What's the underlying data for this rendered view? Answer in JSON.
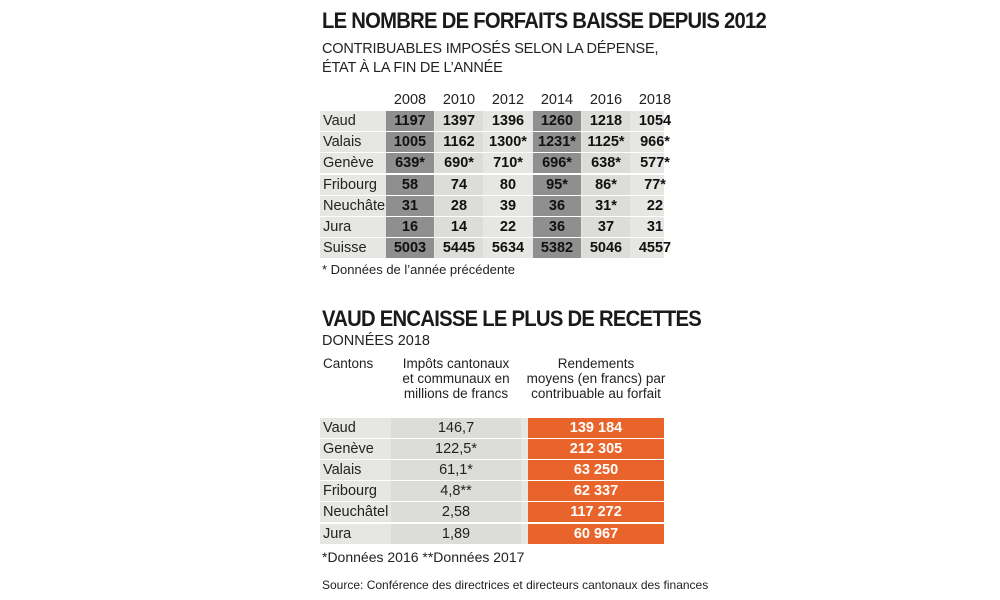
{
  "chart_data": [
    {
      "type": "table",
      "title": "LE NOMBRE DE FORFAITS BAISSE DEPUIS 2012",
      "subtitle_lines": [
        "CONTRIBUABLES IMPOSÉS SELON LA DÉPENSE,",
        "ÉTAT À LA FIN DE L’ANNÉE"
      ],
      "columns": [
        "2008",
        "2010",
        "2012",
        "2014",
        "2016",
        "2018"
      ],
      "rows": [
        {
          "name": "Vaud",
          "values": [
            "1197",
            "1397",
            "1396",
            "1260",
            "1218",
            "1054"
          ]
        },
        {
          "name": "Valais",
          "values": [
            "1005",
            "1162",
            "1300*",
            "1231*",
            "1125*",
            "966*"
          ]
        },
        {
          "name": "Genève",
          "values": [
            "639*",
            "690*",
            "710*",
            "696*",
            "638*",
            "577*"
          ]
        },
        {
          "name": "Fribourg",
          "values": [
            "58",
            "74",
            "80",
            "95*",
            "86*",
            "77*"
          ]
        },
        {
          "name": "Neuchâtel",
          "values": [
            "31",
            "28",
            "39",
            "36",
            "31*",
            "22"
          ]
        },
        {
          "name": "Jura",
          "values": [
            "16",
            "14",
            "22",
            "36",
            "37",
            "31"
          ]
        },
        {
          "name": "Suisse",
          "values": [
            "5003",
            "5445",
            "5634",
            "5382",
            "5046",
            "4557"
          ]
        }
      ],
      "note": "* Données de l’année précédente"
    },
    {
      "type": "table",
      "title": "VAUD ENCAISSE LE PLUS DE RECETTES",
      "subtitle": "DONNÉES 2018",
      "column_headers": {
        "cantons": "Cantons",
        "impots": [
          "Impôts cantonaux",
          "et communaux en",
          "millions de francs"
        ],
        "rendements": [
          "Rendements",
          "moyens (en francs) par",
          "contribuable au forfait"
        ]
      },
      "rows": [
        {
          "name": "Vaud",
          "impots": "146,7",
          "rendement": "139 184"
        },
        {
          "name": "Genève",
          "impots": "122,5*",
          "rendement": "212 305"
        },
        {
          "name": "Valais",
          "impots": "61,1*",
          "rendement": "63 250"
        },
        {
          "name": "Fribourg",
          "impots": "4,8**",
          "rendement": "62 337"
        },
        {
          "name": "Neuchâtel",
          "impots": "2,58",
          "rendement": "117 272"
        },
        {
          "name": "Jura",
          "impots": "1,89",
          "rendement": "60 967"
        }
      ],
      "note": "*Données 2016 **Données 2017"
    }
  ],
  "source": "Source: Conférence des directrices et directeurs cantonaux des finances",
  "colors": {
    "accent_orange": "#e8642a",
    "dark_column": "#8f8f8f",
    "light_column": "#dcdcd8",
    "row_background": "#e6e6e2"
  }
}
